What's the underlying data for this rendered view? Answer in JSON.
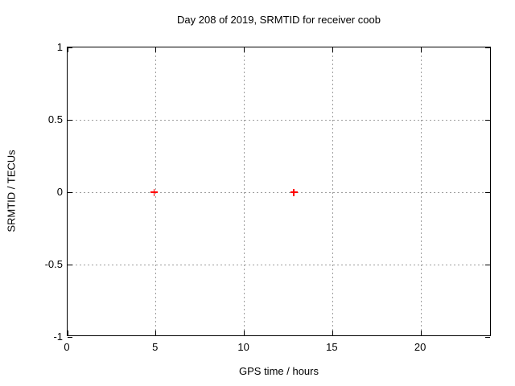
{
  "colors": {
    "background": "#ffffff",
    "foreground": "#000000",
    "grid": "#9e9e9e",
    "series1": "#ff0000"
  },
  "chart_data": {
    "type": "scatter",
    "title": "Day 208 of 2019, SRMTID for receiver coob",
    "xlabel": "GPS time / hours",
    "ylabel": "SRMTID / TECUs",
    "xlim": [
      0,
      24
    ],
    "ylim": [
      -1,
      1
    ],
    "xticks": [
      {
        "value": 0,
        "label": "0"
      },
      {
        "value": 5,
        "label": "5"
      },
      {
        "value": 10,
        "label": "10"
      },
      {
        "value": 15,
        "label": "15"
      },
      {
        "value": 20,
        "label": "20"
      }
    ],
    "yticks": [
      {
        "value": 1,
        "label": "1"
      },
      {
        "value": 0.5,
        "label": "0.5"
      },
      {
        "value": 0,
        "label": "0"
      },
      {
        "value": -0.5,
        "label": "-0.5"
      },
      {
        "value": -1,
        "label": "-1"
      }
    ],
    "grid": true,
    "legend": "none",
    "series": [
      {
        "name": "SRMTID",
        "marker": "plus",
        "color": "#ff0000",
        "points": [
          {
            "x": 4.9,
            "y": 0.0
          },
          {
            "x": 12.8,
            "y": 0.0
          }
        ]
      }
    ]
  }
}
